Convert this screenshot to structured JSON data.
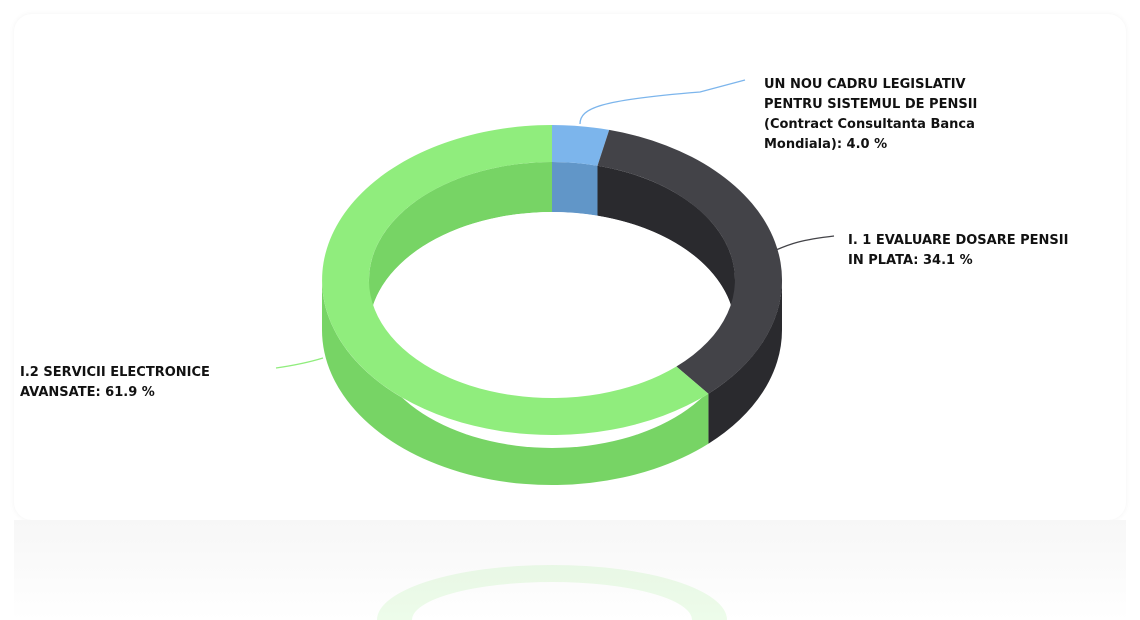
{
  "chart_data": {
    "type": "pie",
    "variant": "3d-donut",
    "categories": [
      "UN NOU CADRU LEGISLATIV PENTRU SISTEMUL DE PENSII (Contract Consultanta Banca Mondiala)",
      "I. 1 EVALUARE DOSARE PENSII IN PLATA",
      "I.2 SERVICII ELECTRONICE AVANSATE"
    ],
    "values": [
      4.0,
      34.1,
      61.9
    ],
    "unit": "%",
    "colors": [
      "#7cb5ec",
      "#434348",
      "#90ed7d"
    ],
    "side_colors": [
      "#6196c8",
      "#2a2a2e",
      "#77d465"
    ],
    "data_labels": [
      [
        "UN NOU CADRU LEGISLATIV",
        "PENTRU SISTEMUL DE PENSII",
        "(Contract Consultanta Banca",
        "Mondiala): 4.0 %"
      ],
      [
        "I. 1 EVALUARE DOSARE PENSII",
        "IN PLATA: 34.1 %"
      ],
      [
        "I.2 SERVICII ELECTRONICE",
        "AVANSATE: 61.9 %"
      ]
    ],
    "title": "",
    "legend": "none"
  }
}
